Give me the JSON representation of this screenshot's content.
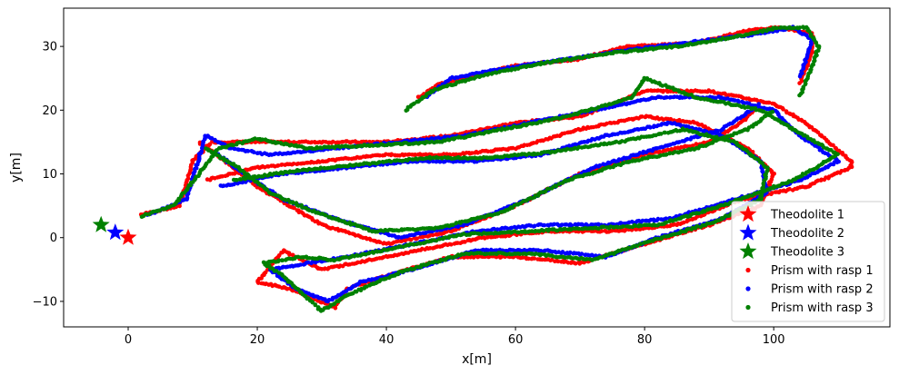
{
  "chart_data": {
    "type": "scatter",
    "xlabel": "x[m]",
    "ylabel": "y[m]",
    "xlim": [
      -10,
      118
    ],
    "ylim": [
      -14,
      36
    ],
    "xticks": [
      0,
      20,
      40,
      60,
      80,
      100
    ],
    "yticks": [
      -10,
      0,
      10,
      20,
      30
    ],
    "grid": false,
    "legend_position": "lower-right",
    "theodolites": [
      {
        "name": "Theodolite 1",
        "color": "#ff0000",
        "x": 0.0,
        "y": 0.0
      },
      {
        "name": "Theodolite 2",
        "color": "#0000ff",
        "x": -2.0,
        "y": 0.8
      },
      {
        "name": "Theodolite 3",
        "color": "#008000",
        "x": -4.2,
        "y": 2.0
      }
    ],
    "series": [
      {
        "name": "Prism with rasp 1",
        "color": "#ff0000",
        "paths": [
          [
            [
              2,
              3.6
            ],
            [
              8,
              5
            ],
            [
              10,
              12
            ],
            [
              13,
              15
            ],
            [
              20,
              15
            ],
            [
              30,
              15
            ],
            [
              40,
              15
            ],
            [
              50,
              16
            ],
            [
              60,
              18
            ],
            [
              70,
              19
            ],
            [
              80,
              23
            ],
            [
              90,
              23
            ],
            [
              100,
              21
            ],
            [
              105,
              18
            ],
            [
              112,
              12
            ],
            [
              112,
              11
            ],
            [
              105,
              8
            ],
            [
              95,
              6
            ],
            [
              85,
              2
            ],
            [
              75,
              1
            ],
            [
              65,
              1
            ],
            [
              55,
              0
            ],
            [
              45,
              -2
            ],
            [
              35,
              -4
            ],
            [
              30,
              -5
            ],
            [
              24,
              -2
            ],
            [
              20,
              -7
            ],
            [
              25,
              -8
            ],
            [
              32,
              -11
            ],
            [
              34,
              -8
            ],
            [
              40,
              -6
            ],
            [
              50,
              -3
            ],
            [
              60,
              -3
            ],
            [
              70,
              -4
            ],
            [
              80,
              -1
            ],
            [
              90,
              2
            ],
            [
              98,
              5
            ],
            [
              100,
              10
            ],
            [
              96,
              14
            ],
            [
              88,
              18
            ],
            [
              80,
              19
            ],
            [
              70,
              17
            ],
            [
              60,
              14
            ],
            [
              50,
              13
            ],
            [
              40,
              13
            ],
            [
              30,
              12
            ],
            [
              20,
              11
            ],
            [
              12,
              9
            ]
          ],
          [
            [
              45,
              22
            ],
            [
              48,
              24
            ],
            [
              56,
              26
            ],
            [
              60,
              27
            ],
            [
              70,
              28
            ],
            [
              77,
              30
            ],
            [
              88,
              30.5
            ],
            [
              96,
              32.5
            ],
            [
              101,
              33
            ],
            [
              106,
              32
            ],
            [
              106,
              29
            ],
            [
              104,
              24
            ]
          ],
          [
            [
              11,
              15
            ],
            [
              15,
              12
            ],
            [
              20,
              8
            ],
            [
              25,
              5
            ],
            [
              30,
              2
            ],
            [
              40,
              -1
            ],
            [
              50,
              1
            ],
            [
              60,
              5
            ],
            [
              70,
              10
            ],
            [
              80,
              13
            ],
            [
              90,
              15
            ],
            [
              95,
              18
            ],
            [
              97,
              20
            ]
          ]
        ]
      },
      {
        "name": "Prism with rasp 2",
        "color": "#0000ff",
        "paths": [
          [
            [
              3,
              3.5
            ],
            [
              9,
              6
            ],
            [
              12,
              16
            ],
            [
              16,
              14
            ],
            [
              22,
              13
            ],
            [
              32,
              14
            ],
            [
              42,
              15
            ],
            [
              52,
              16
            ],
            [
              62,
              18
            ],
            [
              72,
              20
            ],
            [
              82,
              22
            ],
            [
              92,
              22
            ],
            [
              100,
              20
            ],
            [
              104,
              16
            ],
            [
              110,
              12
            ],
            [
              104,
              9
            ],
            [
              94,
              6
            ],
            [
              84,
              3
            ],
            [
              74,
              2
            ],
            [
              64,
              2
            ],
            [
              54,
              1
            ],
            [
              44,
              -1
            ],
            [
              34,
              -3
            ],
            [
              28,
              -4
            ],
            [
              22,
              -5
            ],
            [
              26,
              -8
            ],
            [
              31,
              -10
            ],
            [
              36,
              -7
            ],
            [
              44,
              -5
            ],
            [
              54,
              -2
            ],
            [
              64,
              -2
            ],
            [
              74,
              -3
            ],
            [
              82,
              0
            ],
            [
              92,
              3
            ],
            [
              99,
              7
            ],
            [
              98,
              12
            ],
            [
              92,
              16
            ],
            [
              84,
              18
            ],
            [
              74,
              16
            ],
            [
              64,
              13
            ],
            [
              54,
              12
            ],
            [
              44,
              12
            ],
            [
              34,
              11
            ],
            [
              24,
              10
            ],
            [
              14,
              8
            ]
          ],
          [
            [
              46,
              22
            ],
            [
              50,
              25
            ],
            [
              58,
              26.5
            ],
            [
              68,
              28
            ],
            [
              78,
              29.5
            ],
            [
              90,
              31
            ],
            [
              98,
              32
            ],
            [
              103,
              33
            ],
            [
              106,
              31
            ],
            [
              104,
              25
            ]
          ],
          [
            [
              14,
              13
            ],
            [
              18,
              10
            ],
            [
              24,
              6
            ],
            [
              32,
              3
            ],
            [
              42,
              0
            ],
            [
              52,
              2
            ],
            [
              62,
              6
            ],
            [
              72,
              11
            ],
            [
              82,
              14
            ],
            [
              92,
              17
            ],
            [
              98,
              21
            ]
          ]
        ]
      },
      {
        "name": "Prism with rasp 3",
        "color": "#008000",
        "paths": [
          [
            [
              2,
              3.4
            ],
            [
              7,
              5
            ],
            [
              11,
              10
            ],
            [
              14,
              14
            ],
            [
              20,
              15.5
            ],
            [
              28,
              14
            ],
            [
              38,
              14.5
            ],
            [
              48,
              15
            ],
            [
              58,
              17
            ],
            [
              68,
              19
            ],
            [
              78,
              22
            ],
            [
              80,
              25
            ],
            [
              88,
              22
            ],
            [
              98,
              20
            ],
            [
              103,
              17
            ],
            [
              110,
              13
            ],
            [
              103,
              9
            ],
            [
              92,
              5
            ],
            [
              82,
              2
            ],
            [
              72,
              1.5
            ],
            [
              62,
              1
            ],
            [
              52,
              0.5
            ],
            [
              42,
              -1.5
            ],
            [
              32,
              -3.5
            ],
            [
              27,
              -3
            ],
            [
              21,
              -4
            ],
            [
              24,
              -6
            ],
            [
              30,
              -11.5
            ],
            [
              34,
              -9
            ],
            [
              42,
              -5.5
            ],
            [
              52,
              -2.5
            ],
            [
              62,
              -2.5
            ],
            [
              72,
              -3.5
            ],
            [
              81,
              -0.5
            ],
            [
              91,
              2.5
            ],
            [
              98,
              6
            ],
            [
              99,
              11
            ],
            [
              94,
              15
            ],
            [
              86,
              17
            ],
            [
              76,
              15
            ],
            [
              66,
              13.5
            ],
            [
              56,
              12.5
            ],
            [
              46,
              12.5
            ],
            [
              36,
              11.5
            ],
            [
              26,
              10.5
            ],
            [
              16,
              9
            ]
          ],
          [
            [
              43,
              20
            ],
            [
              47,
              23
            ],
            [
              55,
              25.5
            ],
            [
              65,
              27.5
            ],
            [
              75,
              29
            ],
            [
              85,
              30
            ],
            [
              94,
              31.5
            ],
            [
              100,
              32.8
            ],
            [
              105,
              33
            ],
            [
              107,
              30
            ],
            [
              106,
              27
            ],
            [
              104,
              22
            ]
          ],
          [
            [
              12,
              14
            ],
            [
              17,
              11
            ],
            [
              22,
              7
            ],
            [
              29,
              4
            ],
            [
              38,
              1
            ],
            [
              48,
              1.5
            ],
            [
              58,
              4
            ],
            [
              68,
              9
            ],
            [
              78,
              12
            ],
            [
              88,
              14
            ],
            [
              96,
              17
            ],
            [
              100,
              20
            ]
          ]
        ]
      }
    ]
  }
}
